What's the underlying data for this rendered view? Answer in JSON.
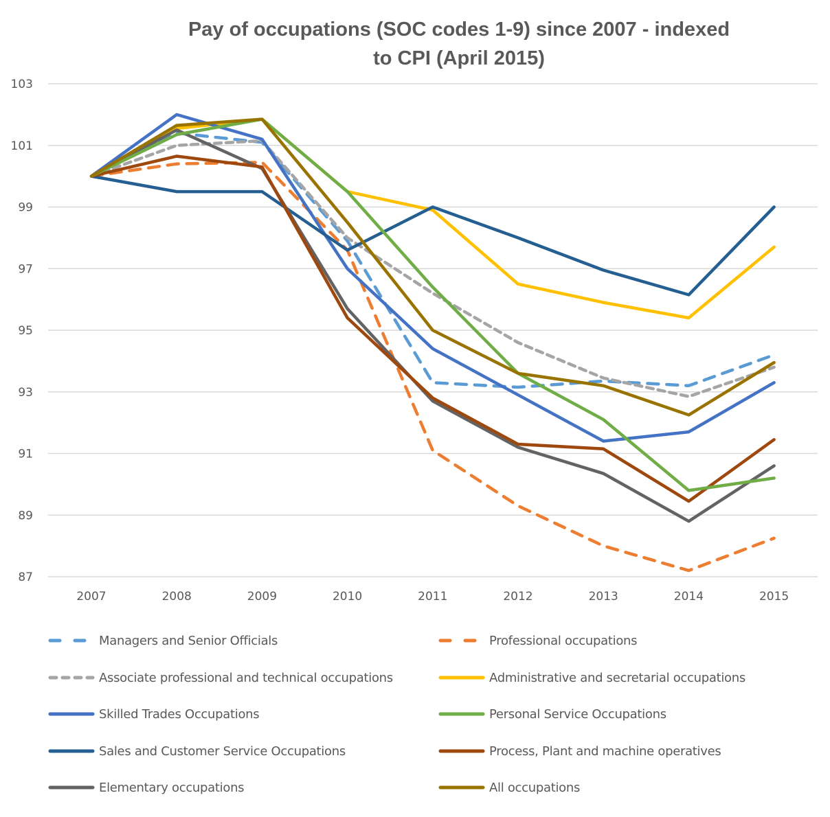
{
  "chart_data": {
    "type": "line",
    "title": "Pay of occupations (SOC codes 1-9) since 2007 - indexed to CPI (April 2015)",
    "title_lines": [
      "Pay of occupations (SOC codes 1-9) since 2007 - indexed",
      "to CPI (April 2015)"
    ],
    "xlabel": "",
    "ylabel": "",
    "categories": [
      "2007",
      "2008",
      "2009",
      "2010",
      "2011",
      "2012",
      "2013",
      "2014",
      "2015"
    ],
    "ylim": [
      87,
      103
    ],
    "yticks": [
      103,
      101,
      99,
      97,
      95,
      93,
      91,
      89,
      87
    ],
    "grid": true,
    "legend_position": "bottom",
    "series": [
      {
        "name": "Managers and Senior Officials",
        "color": "#5b9bd5",
        "dash": "dashed",
        "values": [
          100,
          101.4,
          101.1,
          97.9,
          93.3,
          93.15,
          93.35,
          93.2,
          94.2
        ]
      },
      {
        "name": "Professional occupations",
        "color": "#ed7d31",
        "dash": "dashed",
        "values": [
          100,
          100.4,
          100.45,
          97.6,
          91.1,
          89.3,
          88.0,
          87.2,
          88.25
        ]
      },
      {
        "name": "Associate professional and technical occupations",
        "color": "#a5a5a5",
        "dash": "dashed-short",
        "values": [
          100,
          101.0,
          101.15,
          98.0,
          96.2,
          94.6,
          93.45,
          92.85,
          93.8
        ]
      },
      {
        "name": "Administrative and secretarial occupations",
        "color": "#ffc000",
        "dash": "solid",
        "values": [
          100,
          101.55,
          101.85,
          99.5,
          98.9,
          96.5,
          95.9,
          95.4,
          97.7
        ]
      },
      {
        "name": "Skilled Trades Occupations",
        "color": "#4472c4",
        "dash": "solid",
        "values": [
          100,
          102.0,
          101.2,
          97.0,
          94.4,
          92.9,
          91.4,
          91.7,
          93.3
        ]
      },
      {
        "name": "Personal Service Occupations",
        "color": "#70ad47",
        "dash": "solid",
        "values": [
          100,
          101.35,
          101.85,
          99.5,
          96.4,
          93.6,
          92.1,
          89.8,
          90.2
        ]
      },
      {
        "name": "Sales and Customer Service Occupations",
        "color": "#255e91",
        "dash": "solid",
        "values": [
          100,
          99.5,
          99.5,
          97.6,
          99.0,
          98.0,
          96.95,
          96.15,
          99.0
        ]
      },
      {
        "name": "Process, Plant and machine operatives",
        "color": "#9e480e",
        "dash": "solid",
        "values": [
          100,
          100.65,
          100.3,
          95.4,
          92.8,
          91.3,
          91.15,
          89.45,
          91.45
        ]
      },
      {
        "name": "Elementary occupations",
        "color": "#636363",
        "dash": "solid",
        "values": [
          100,
          101.5,
          100.25,
          95.7,
          92.7,
          91.2,
          90.35,
          88.8,
          90.6
        ]
      },
      {
        "name": "All occupations",
        "color": "#997300",
        "dash": "solid",
        "values": [
          100,
          101.65,
          101.85,
          98.5,
          95.0,
          93.6,
          93.2,
          92.25,
          93.95
        ]
      }
    ]
  }
}
